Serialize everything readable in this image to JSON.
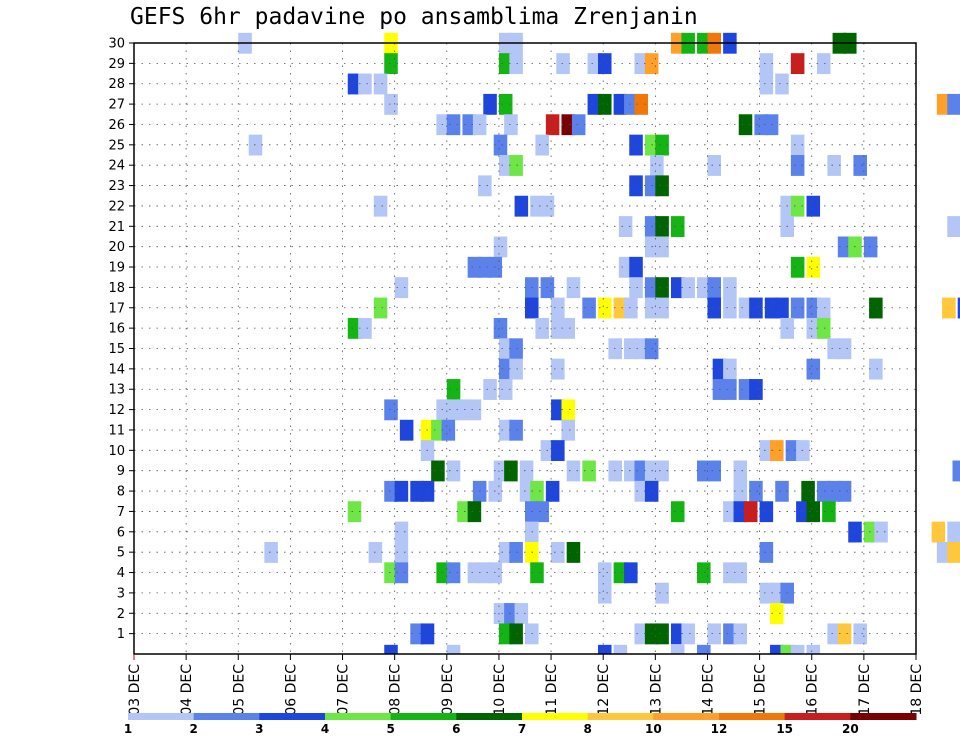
{
  "chart_data": {
    "type": "heatmap",
    "title": "GEFS 6hr padavine po ansamblima Zrenjanin",
    "xlabel": "",
    "ylabel": "",
    "x_ticks": [
      "03 DEC",
      "04 DEC",
      "05 DEC",
      "06 DEC",
      "07 DEC",
      "08 DEC",
      "09 DEC",
      "10 DEC",
      "11 DEC",
      "12 DEC",
      "13 DEC",
      "14 DEC",
      "15 DEC",
      "16 DEC",
      "17 DEC",
      "18 DEC"
    ],
    "y_ticks": [
      1,
      2,
      3,
      4,
      5,
      6,
      7,
      8,
      9,
      10,
      11,
      12,
      13,
      14,
      15,
      16,
      17,
      18,
      19,
      20,
      21,
      22,
      23,
      24,
      25,
      26,
      27,
      28,
      29,
      30
    ],
    "xlim_days": [
      0,
      15
    ],
    "ylim": [
      0,
      30
    ],
    "grid": true,
    "colorbar": {
      "levels": [
        "1",
        "2",
        "3",
        "4",
        "5",
        "6",
        "7",
        "8",
        "10",
        "12",
        "15",
        "20"
      ],
      "colors": [
        "#b4c6f5",
        "#5a82ea",
        "#1e46dc",
        "#6ee646",
        "#14b414",
        "#006400",
        "#ffff00",
        "#ffc83c",
        "#ffa028",
        "#f0780a",
        "#c81e1e",
        "#780000"
      ]
    },
    "cells": [
      [
        30,
        [
          [
            5.0,
            0
          ],
          [
            7.8,
            6
          ],
          [
            10.0,
            0
          ],
          [
            10.2,
            0
          ],
          [
            13.3,
            8
          ],
          [
            13.5,
            4
          ],
          [
            13.8,
            4
          ],
          [
            14.0,
            9
          ],
          [
            14.3,
            2
          ],
          [
            16.4,
            5
          ],
          [
            16.6,
            5
          ]
        ]
      ],
      [
        29,
        [
          [
            7.8,
            4
          ],
          [
            10.0,
            4
          ],
          [
            10.2,
            0
          ],
          [
            11.1,
            0
          ],
          [
            11.7,
            0
          ],
          [
            11.9,
            2
          ],
          [
            12.6,
            0
          ],
          [
            12.8,
            8
          ],
          [
            15.0,
            0
          ],
          [
            15.6,
            10
          ],
          [
            16.1,
            0
          ]
        ]
      ],
      [
        28,
        [
          [
            7.1,
            2
          ],
          [
            7.3,
            0
          ],
          [
            7.6,
            0
          ],
          [
            15.0,
            0
          ],
          [
            15.3,
            0
          ]
        ]
      ],
      [
        27,
        [
          [
            7.8,
            0
          ],
          [
            9.7,
            2
          ],
          [
            10.0,
            4
          ],
          [
            11.7,
            2
          ],
          [
            11.9,
            5
          ],
          [
            12.2,
            2
          ],
          [
            12.4,
            1
          ],
          [
            12.6,
            9
          ],
          [
            18.4,
            8
          ],
          [
            18.6,
            1
          ],
          [
            18.9,
            2
          ]
        ]
      ],
      [
        26,
        [
          [
            8.8,
            0
          ],
          [
            9.0,
            1
          ],
          [
            9.3,
            1
          ],
          [
            9.5,
            0
          ],
          [
            10.1,
            0
          ],
          [
            10.9,
            10
          ],
          [
            11.2,
            11
          ],
          [
            11.4,
            1
          ],
          [
            14.6,
            5
          ],
          [
            14.9,
            1
          ],
          [
            15.1,
            1
          ]
        ]
      ],
      [
        25,
        [
          [
            5.2,
            0
          ],
          [
            9.9,
            1
          ],
          [
            10.7,
            0
          ],
          [
            12.5,
            2
          ],
          [
            12.8,
            3
          ],
          [
            13.0,
            4
          ],
          [
            15.6,
            0
          ]
        ]
      ],
      [
        24,
        [
          [
            10.0,
            0
          ],
          [
            10.2,
            3
          ],
          [
            12.9,
            0
          ],
          [
            14.0,
            0
          ],
          [
            15.6,
            1
          ],
          [
            16.3,
            0
          ],
          [
            16.8,
            1
          ]
        ]
      ],
      [
        23,
        [
          [
            9.6,
            0
          ],
          [
            12.5,
            2
          ],
          [
            12.8,
            1
          ],
          [
            13.0,
            5
          ]
        ]
      ],
      [
        22,
        [
          [
            7.6,
            0
          ],
          [
            10.3,
            2
          ],
          [
            10.6,
            0
          ],
          [
            10.8,
            0
          ],
          [
            15.4,
            0
          ],
          [
            15.6,
            3
          ],
          [
            15.9,
            2
          ]
        ]
      ],
      [
        21,
        [
          [
            12.3,
            0
          ],
          [
            12.8,
            1
          ],
          [
            13.0,
            5
          ],
          [
            13.3,
            4
          ],
          [
            15.4,
            0
          ],
          [
            18.6,
            0
          ],
          [
            18.9,
            1
          ]
        ]
      ],
      [
        20,
        [
          [
            9.9,
            0
          ],
          [
            12.8,
            0
          ],
          [
            13.0,
            0
          ],
          [
            16.5,
            1
          ],
          [
            16.7,
            3
          ],
          [
            17.0,
            1
          ]
        ]
      ],
      [
        19,
        [
          [
            9.4,
            1
          ],
          [
            9.6,
            1
          ],
          [
            9.8,
            1
          ],
          [
            12.3,
            0
          ],
          [
            12.5,
            2
          ],
          [
            15.6,
            4
          ],
          [
            15.9,
            6
          ],
          [
            18.9,
            0
          ]
        ]
      ],
      [
        18,
        [
          [
            8.0,
            0
          ],
          [
            10.5,
            1
          ],
          [
            10.8,
            1
          ],
          [
            11.3,
            0
          ],
          [
            12.5,
            0
          ],
          [
            12.8,
            1
          ],
          [
            13.0,
            5
          ],
          [
            13.3,
            2
          ],
          [
            13.5,
            0
          ],
          [
            13.8,
            0
          ],
          [
            14.0,
            1
          ],
          [
            14.3,
            0
          ]
        ]
      ],
      [
        17,
        [
          [
            7.6,
            3
          ],
          [
            10.5,
            2
          ],
          [
            11.0,
            0
          ],
          [
            11.6,
            1
          ],
          [
            11.9,
            6
          ],
          [
            12.2,
            7
          ],
          [
            12.4,
            0
          ],
          [
            12.8,
            0
          ],
          [
            13.0,
            0
          ],
          [
            14.0,
            2
          ],
          [
            14.3,
            0
          ],
          [
            14.6,
            0
          ],
          [
            14.8,
            2
          ],
          [
            15.1,
            2
          ],
          [
            15.3,
            2
          ],
          [
            15.6,
            1
          ],
          [
            15.9,
            1
          ],
          [
            16.1,
            0
          ],
          [
            17.1,
            5
          ],
          [
            18.5,
            7
          ],
          [
            18.8,
            2
          ]
        ]
      ],
      [
        16,
        [
          [
            7.1,
            4
          ],
          [
            7.3,
            0
          ],
          [
            9.9,
            1
          ],
          [
            10.7,
            0
          ],
          [
            11.0,
            0
          ],
          [
            11.2,
            0
          ],
          [
            15.4,
            0
          ],
          [
            15.9,
            0
          ],
          [
            16.1,
            3
          ]
        ]
      ],
      [
        15,
        [
          [
            10.0,
            0
          ],
          [
            10.2,
            1
          ],
          [
            12.1,
            0
          ],
          [
            12.4,
            0
          ],
          [
            12.6,
            0
          ],
          [
            12.8,
            1
          ],
          [
            16.3,
            0
          ],
          [
            16.5,
            0
          ]
        ]
      ],
      [
        14,
        [
          [
            10.0,
            1
          ],
          [
            10.2,
            0
          ],
          [
            11.0,
            0
          ],
          [
            14.1,
            2
          ],
          [
            14.3,
            0
          ],
          [
            15.9,
            1
          ],
          [
            17.1,
            0
          ]
        ]
      ],
      [
        13,
        [
          [
            9.0,
            4
          ],
          [
            9.7,
            0
          ],
          [
            10.0,
            0
          ],
          [
            14.1,
            1
          ],
          [
            14.3,
            1
          ],
          [
            14.6,
            1
          ],
          [
            14.8,
            2
          ]
        ]
      ],
      [
        12,
        [
          [
            7.8,
            1
          ],
          [
            8.8,
            0
          ],
          [
            9.0,
            0
          ],
          [
            9.2,
            0
          ],
          [
            9.4,
            0
          ],
          [
            11.0,
            2
          ],
          [
            11.2,
            6
          ]
        ]
      ],
      [
        11,
        [
          [
            8.1,
            2
          ],
          [
            8.5,
            6
          ],
          [
            8.7,
            3
          ],
          [
            8.9,
            1
          ],
          [
            10.0,
            0
          ],
          [
            10.2,
            1
          ],
          [
            11.2,
            0
          ]
        ]
      ],
      [
        10,
        [
          [
            8.5,
            0
          ],
          [
            10.8,
            0
          ],
          [
            11.0,
            2
          ],
          [
            15.0,
            0
          ],
          [
            15.2,
            8
          ],
          [
            15.5,
            1
          ],
          [
            15.7,
            0
          ]
        ]
      ],
      [
        9,
        [
          [
            8.7,
            5
          ],
          [
            9.0,
            0
          ],
          [
            9.9,
            0
          ],
          [
            10.1,
            5
          ],
          [
            10.4,
            0
          ],
          [
            11.3,
            0
          ],
          [
            11.6,
            3
          ],
          [
            12.1,
            0
          ],
          [
            12.4,
            0
          ],
          [
            12.6,
            1
          ],
          [
            12.8,
            0
          ],
          [
            13.0,
            0
          ],
          [
            13.8,
            1
          ],
          [
            14.0,
            1
          ],
          [
            14.5,
            0
          ],
          [
            18.7,
            1
          ],
          [
            18.9,
            2
          ]
        ]
      ],
      [
        8,
        [
          [
            7.8,
            1
          ],
          [
            8.0,
            2
          ],
          [
            8.3,
            2
          ],
          [
            8.5,
            2
          ],
          [
            9.5,
            1
          ],
          [
            9.8,
            0
          ],
          [
            10.4,
            0
          ],
          [
            10.6,
            3
          ],
          [
            10.9,
            2
          ],
          [
            12.6,
            0
          ],
          [
            12.8,
            2
          ],
          [
            14.5,
            0
          ],
          [
            14.8,
            1
          ],
          [
            15.3,
            1
          ],
          [
            15.8,
            5
          ],
          [
            16.1,
            1
          ],
          [
            16.3,
            1
          ],
          [
            16.5,
            1
          ]
        ]
      ],
      [
        7,
        [
          [
            7.1,
            3
          ],
          [
            9.2,
            3
          ],
          [
            9.4,
            5
          ],
          [
            10.5,
            1
          ],
          [
            10.7,
            1
          ],
          [
            13.3,
            4
          ],
          [
            14.3,
            0
          ],
          [
            14.5,
            2
          ],
          [
            14.7,
            10
          ],
          [
            15.0,
            2
          ],
          [
            15.7,
            2
          ],
          [
            15.9,
            5
          ],
          [
            16.2,
            4
          ]
        ]
      ],
      [
        6,
        [
          [
            8.0,
            0
          ],
          [
            10.5,
            0
          ],
          [
            16.7,
            2
          ],
          [
            17.0,
            3
          ],
          [
            17.2,
            0
          ],
          [
            18.3,
            7
          ],
          [
            18.6,
            0
          ]
        ]
      ],
      [
        5,
        [
          [
            5.5,
            0
          ],
          [
            7.5,
            0
          ],
          [
            8.0,
            0
          ],
          [
            10.0,
            0
          ],
          [
            10.2,
            1
          ],
          [
            10.5,
            6
          ],
          [
            11.0,
            0
          ],
          [
            11.3,
            5
          ],
          [
            15.0,
            1
          ],
          [
            18.4,
            0
          ],
          [
            18.6,
            7
          ],
          [
            18.9,
            7
          ]
        ]
      ],
      [
        4,
        [
          [
            7.8,
            3
          ],
          [
            8.0,
            1
          ],
          [
            8.8,
            4
          ],
          [
            9.0,
            1
          ],
          [
            9.4,
            0
          ],
          [
            9.6,
            0
          ],
          [
            9.8,
            0
          ],
          [
            10.6,
            4
          ],
          [
            11.9,
            0
          ],
          [
            12.2,
            4
          ],
          [
            12.4,
            2
          ],
          [
            13.8,
            4
          ],
          [
            14.3,
            0
          ],
          [
            14.5,
            0
          ],
          [
            18.9,
            0
          ]
        ]
      ],
      [
        3,
        [
          [
            11.9,
            0
          ],
          [
            13.0,
            0
          ],
          [
            15.0,
            0
          ],
          [
            15.2,
            0
          ],
          [
            15.4,
            1
          ]
        ]
      ],
      [
        2,
        [
          [
            9.9,
            0
          ],
          [
            10.1,
            1
          ],
          [
            10.3,
            0
          ],
          [
            15.2,
            6
          ]
        ]
      ],
      [
        1,
        [
          [
            8.3,
            1
          ],
          [
            8.5,
            2
          ],
          [
            10.0,
            4
          ],
          [
            10.2,
            5
          ],
          [
            10.5,
            0
          ],
          [
            12.6,
            0
          ],
          [
            12.8,
            5
          ],
          [
            13.0,
            5
          ],
          [
            13.3,
            2
          ],
          [
            13.5,
            0
          ],
          [
            14.0,
            0
          ],
          [
            14.3,
            1
          ],
          [
            14.5,
            0
          ],
          [
            16.3,
            0
          ],
          [
            16.5,
            7
          ],
          [
            16.8,
            0
          ]
        ]
      ]
    ],
    "bottom_row": [
      [
        7.8,
        2
      ],
      [
        9.0,
        0
      ],
      [
        11.9,
        2
      ],
      [
        12.2,
        0
      ],
      [
        13.3,
        0
      ],
      [
        13.8,
        1
      ],
      [
        15.2,
        2
      ],
      [
        15.4,
        3
      ],
      [
        15.6,
        0
      ],
      [
        15.9,
        0
      ],
      [
        18.9,
        2
      ]
    ]
  }
}
